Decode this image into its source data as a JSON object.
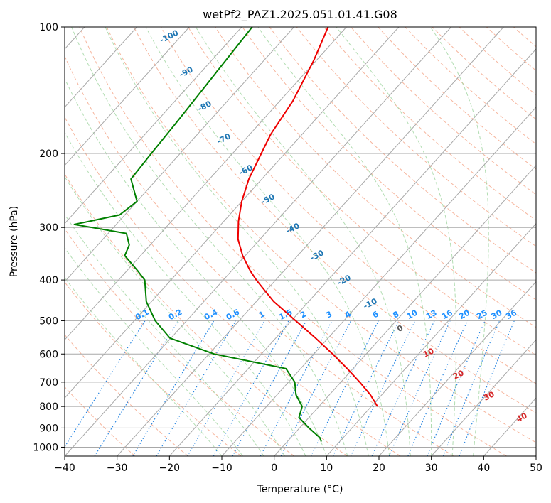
{
  "chart_data": {
    "type": "line",
    "title": "wetPf2_PAZ1.2025.051.01.41.G08",
    "xlabel": "Temperature (°C)",
    "ylabel": "Pressure (hPa)",
    "xlim": [
      -40,
      50
    ],
    "ylim": [
      1050,
      100
    ],
    "y_scale": "log",
    "grid": true,
    "x_ticks": [
      "−40",
      "−30",
      "−20",
      "−10",
      "0",
      "10",
      "20",
      "30",
      "40",
      "50"
    ],
    "x_tick_values": [
      -40,
      -30,
      -20,
      -10,
      0,
      10,
      20,
      30,
      40,
      50
    ],
    "y_ticks": [
      "100",
      "200",
      "300",
      "400",
      "500",
      "600",
      "700",
      "800",
      "900",
      "1000"
    ],
    "y_tick_values": [
      100,
      200,
      300,
      400,
      500,
      600,
      700,
      800,
      900,
      1000
    ],
    "series": [
      {
        "color": "#ee0000",
        "kind": "temperature",
        "points": [
          [
            100,
            -63.5
          ],
          [
            120,
            -60.5
          ],
          [
            150,
            -57.5
          ],
          [
            180,
            -56.0
          ],
          [
            200,
            -54.5
          ],
          [
            230,
            -52.5
          ],
          [
            260,
            -50.0
          ],
          [
            290,
            -47.2
          ],
          [
            320,
            -44.2
          ],
          [
            350,
            -40.5
          ],
          [
            380,
            -36.5
          ],
          [
            400,
            -33.7
          ],
          [
            450,
            -26.7
          ],
          [
            500,
            -19.2
          ],
          [
            550,
            -12.4
          ],
          [
            600,
            -6.4
          ],
          [
            650,
            -1.1
          ],
          [
            700,
            3.6
          ],
          [
            750,
            7.8
          ],
          [
            800,
            11.2
          ]
        ]
      },
      {
        "color": "#008000",
        "kind": "dewpoint",
        "points": [
          [
            100,
            -78
          ],
          [
            130,
            -77
          ],
          [
            170,
            -76
          ],
          [
            200,
            -75.5
          ],
          [
            230,
            -75
          ],
          [
            260,
            -70
          ],
          [
            280,
            -71
          ],
          [
            295,
            -78
          ],
          [
            310,
            -66.5
          ],
          [
            330,
            -64
          ],
          [
            350,
            -63
          ],
          [
            380,
            -58
          ],
          [
            400,
            -55
          ],
          [
            450,
            -51
          ],
          [
            500,
            -46
          ],
          [
            550,
            -40.2
          ],
          [
            600,
            -29
          ],
          [
            650,
            -12.8
          ],
          [
            700,
            -8.8
          ],
          [
            750,
            -6.4
          ],
          [
            800,
            -3.2
          ],
          [
            850,
            -1.9
          ],
          [
            900,
            1.8
          ],
          [
            950,
            5.6
          ],
          [
            970,
            6.5
          ]
        ]
      }
    ],
    "dry_adiabat_labels": [
      "-100",
      "-90",
      "-80",
      "-70",
      "-60",
      "-50",
      "-40",
      "-30",
      "-20",
      "-10",
      "0",
      "10",
      "20",
      "30",
      "40"
    ],
    "mixing_ratio_labels": [
      "0.1",
      "0.2",
      "0.4",
      "0.6",
      "1",
      "1.5",
      "2",
      "3",
      "4",
      "6",
      "8",
      "10",
      "13",
      "16",
      "20",
      "25",
      "30",
      "36"
    ],
    "colors": {
      "isotherm": "#a8a8a8",
      "isobar": "#a8a8a8",
      "dry_adiabat": "#f5a88c",
      "moist_adiabat": "#9fd49f",
      "mixing_ratio": "#1e80e0",
      "dry_label": "#1f77b4",
      "moist_label": "#d62728",
      "mixing_label": "#1e90ff"
    }
  }
}
